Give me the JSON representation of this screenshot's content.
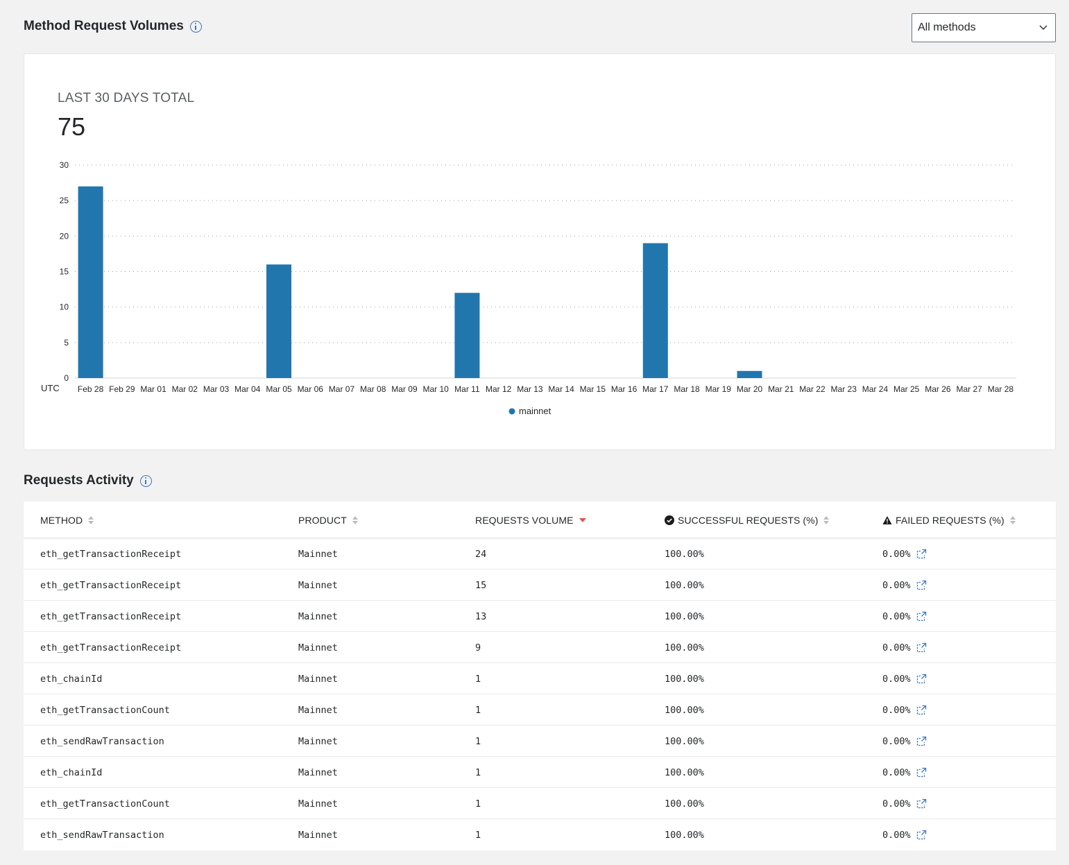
{
  "volumes": {
    "title": "Method Request Volumes",
    "info_icon": "info-icon",
    "filter": {
      "selected": "All methods",
      "icon": "chevron-down-icon"
    },
    "total_label": "LAST 30 DAYS TOTAL",
    "total_value": "75"
  },
  "chart_data": {
    "type": "bar",
    "categories": [
      "Feb 28",
      "Feb 29",
      "Mar 01",
      "Mar 02",
      "Mar 03",
      "Mar 04",
      "Mar 05",
      "Mar 06",
      "Mar 07",
      "Mar 08",
      "Mar 09",
      "Mar 10",
      "Mar 11",
      "Mar 12",
      "Mar 13",
      "Mar 14",
      "Mar 15",
      "Mar 16",
      "Mar 17",
      "Mar 18",
      "Mar 19",
      "Mar 20",
      "Mar 21",
      "Mar 22",
      "Mar 23",
      "Mar 24",
      "Mar 25",
      "Mar 26",
      "Mar 27",
      "Mar 28"
    ],
    "series": [
      {
        "name": "mainnet",
        "color": "#2176ae",
        "values": [
          27,
          0,
          0,
          0,
          0,
          0,
          16,
          0,
          0,
          0,
          0,
          0,
          12,
          0,
          0,
          0,
          0,
          0,
          19,
          0,
          0,
          1,
          0,
          0,
          0,
          0,
          0,
          0,
          0,
          0
        ]
      }
    ],
    "xlabel": "UTC",
    "ylim": [
      0,
      30
    ],
    "yticks": [
      0,
      5,
      10,
      15,
      20,
      25,
      30
    ],
    "grid": true,
    "legend": "bottom-center"
  },
  "activity": {
    "title": "Requests Activity",
    "columns": {
      "method": "METHOD",
      "product": "PRODUCT",
      "volume": "REQUESTS VOLUME",
      "success": "SUCCESSFUL REQUESTS (%)",
      "failed": "FAILED REQUESTS (%)"
    },
    "rows": [
      {
        "method": "eth_getTransactionReceipt",
        "product": "Mainnet",
        "volume": "24",
        "success": "100.00%",
        "failed": "0.00%"
      },
      {
        "method": "eth_getTransactionReceipt",
        "product": "Mainnet",
        "volume": "15",
        "success": "100.00%",
        "failed": "0.00%"
      },
      {
        "method": "eth_getTransactionReceipt",
        "product": "Mainnet",
        "volume": "13",
        "success": "100.00%",
        "failed": "0.00%"
      },
      {
        "method": "eth_getTransactionReceipt",
        "product": "Mainnet",
        "volume": "9",
        "success": "100.00%",
        "failed": "0.00%"
      },
      {
        "method": "eth_chainId",
        "product": "Mainnet",
        "volume": "1",
        "success": "100.00%",
        "failed": "0.00%"
      },
      {
        "method": "eth_getTransactionCount",
        "product": "Mainnet",
        "volume": "1",
        "success": "100.00%",
        "failed": "0.00%"
      },
      {
        "method": "eth_sendRawTransaction",
        "product": "Mainnet",
        "volume": "1",
        "success": "100.00%",
        "failed": "0.00%"
      },
      {
        "method": "eth_chainId",
        "product": "Mainnet",
        "volume": "1",
        "success": "100.00%",
        "failed": "0.00%"
      },
      {
        "method": "eth_getTransactionCount",
        "product": "Mainnet",
        "volume": "1",
        "success": "100.00%",
        "failed": "0.00%"
      },
      {
        "method": "eth_sendRawTransaction",
        "product": "Mainnet",
        "volume": "1",
        "success": "100.00%",
        "failed": "0.00%"
      }
    ]
  }
}
